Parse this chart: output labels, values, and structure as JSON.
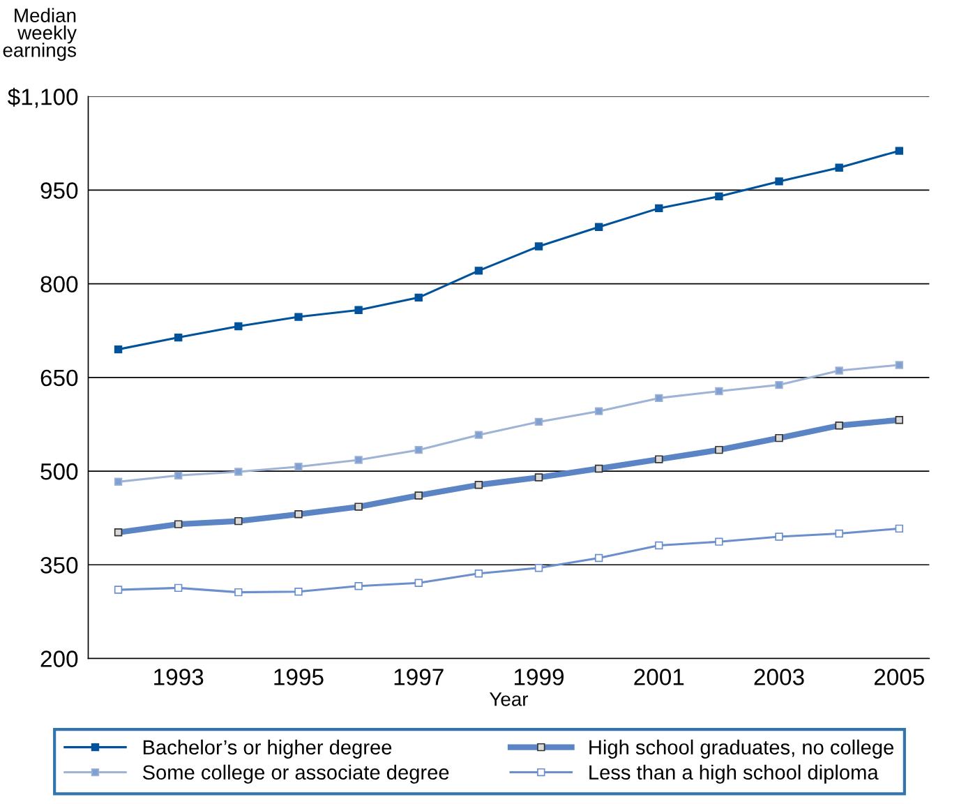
{
  "chart_data": {
    "type": "line",
    "ylabel": "Median\nweekly\nearnings",
    "xlabel": "Year",
    "x": [
      1992,
      1993,
      1994,
      1995,
      1996,
      1997,
      1998,
      1999,
      2000,
      2001,
      2002,
      2003,
      2004,
      2005
    ],
    "series": [
      {
        "name": "Bachelor’s or higher degree",
        "color": "#00529b",
        "values": [
          695,
          714,
          732,
          747,
          758,
          778,
          821,
          860,
          891,
          921,
          940,
          964,
          986,
          1013
        ]
      },
      {
        "name": "Some college or associate degree",
        "color": "#9fb3d6",
        "values": [
          483,
          493,
          499,
          507,
          518,
          534,
          558,
          579,
          596,
          617,
          628,
          638,
          661,
          670
        ]
      },
      {
        "name": "High school graduates, no college",
        "color": "#5b84c4",
        "values": [
          402,
          415,
          420,
          431,
          443,
          461,
          478,
          490,
          504,
          519,
          534,
          553,
          573,
          582
        ]
      },
      {
        "name": "Less than a high school diploma",
        "color": "#6b8fcc",
        "values": [
          310,
          313,
          306,
          307,
          316,
          321,
          336,
          345,
          361,
          381,
          387,
          395,
          400,
          408
        ]
      }
    ],
    "xlim": [
      1991.5,
      2005.5
    ],
    "xticks": [
      1993,
      1995,
      1997,
      1999,
      2001,
      2003,
      2005
    ],
    "ylim": [
      200,
      1100
    ],
    "yticks": [
      200,
      350,
      500,
      650,
      800,
      950,
      {
        "value": 1100,
        "label": "$1,100"
      }
    ],
    "grid": "y",
    "legend": "bottom",
    "marker": "square",
    "line_style": "solid"
  }
}
